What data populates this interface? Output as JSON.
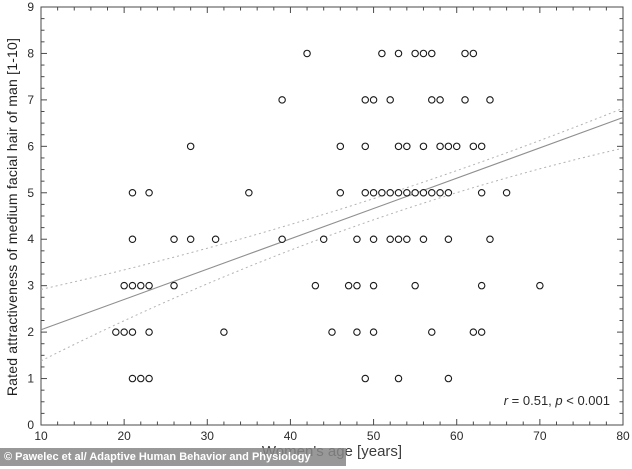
{
  "watermark": {
    "text": "© Pawelec et al/ Adaptive Human Behavior and Physiology"
  },
  "annotation_parts": {
    "r_var": "r",
    "r_rest": " = 0.51, ",
    "p_var": "p",
    "p_rest": " < 0.001"
  },
  "chart_data": {
    "type": "scatter",
    "title": "",
    "xlabel": "Women's age [years]",
    "ylabel": "Rated attractiveness of medium facial hair of man [1-10]",
    "xlim": [
      10,
      80
    ],
    "ylim": [
      0,
      9
    ],
    "x_ticks": [
      10,
      20,
      30,
      40,
      50,
      60,
      70,
      80
    ],
    "y_ticks": [
      0,
      1,
      2,
      3,
      4,
      5,
      6,
      7,
      8,
      9
    ],
    "x_minor_step": 2,
    "y_minor_step": 0.25,
    "grid": false,
    "legend": null,
    "annotation": "r = 0.51, p < 0.001",
    "marker": {
      "shape": "open-circle",
      "radius": 3.2,
      "stroke": "#1a1a1a"
    },
    "colors": {
      "regression_line": "#8f8f8f",
      "confidence_band": "#b3b3b3",
      "frame": "#4a4a4a"
    },
    "points": [
      [
        42,
        8
      ],
      [
        51,
        8
      ],
      [
        53,
        8
      ],
      [
        55,
        8
      ],
      [
        56,
        8
      ],
      [
        57,
        8
      ],
      [
        61,
        8
      ],
      [
        62,
        8
      ],
      [
        39,
        7
      ],
      [
        49,
        7
      ],
      [
        50,
        7
      ],
      [
        52,
        7
      ],
      [
        57,
        7
      ],
      [
        58,
        7
      ],
      [
        61,
        7
      ],
      [
        64,
        7
      ],
      [
        28,
        6
      ],
      [
        46,
        6
      ],
      [
        49,
        6
      ],
      [
        53,
        6
      ],
      [
        54,
        6
      ],
      [
        56,
        6
      ],
      [
        58,
        6
      ],
      [
        59,
        6
      ],
      [
        60,
        6
      ],
      [
        62,
        6
      ],
      [
        63,
        6
      ],
      [
        21,
        5
      ],
      [
        23,
        5
      ],
      [
        35,
        5
      ],
      [
        46,
        5
      ],
      [
        49,
        5
      ],
      [
        50,
        5
      ],
      [
        51,
        5
      ],
      [
        52,
        5
      ],
      [
        53,
        5
      ],
      [
        54,
        5
      ],
      [
        55,
        5
      ],
      [
        56,
        5
      ],
      [
        57,
        5
      ],
      [
        58,
        5
      ],
      [
        59,
        5
      ],
      [
        63,
        5
      ],
      [
        66,
        5
      ],
      [
        21,
        4
      ],
      [
        26,
        4
      ],
      [
        28,
        4
      ],
      [
        31,
        4
      ],
      [
        39,
        4
      ],
      [
        44,
        4
      ],
      [
        48,
        4
      ],
      [
        50,
        4
      ],
      [
        52,
        4
      ],
      [
        53,
        4
      ],
      [
        54,
        4
      ],
      [
        56,
        4
      ],
      [
        59,
        4
      ],
      [
        64,
        4
      ],
      [
        20,
        3
      ],
      [
        21,
        3
      ],
      [
        22,
        3
      ],
      [
        23,
        3
      ],
      [
        26,
        3
      ],
      [
        43,
        3
      ],
      [
        47,
        3
      ],
      [
        48,
        3
      ],
      [
        50,
        3
      ],
      [
        55,
        3
      ],
      [
        63,
        3
      ],
      [
        70,
        3
      ],
      [
        19,
        2
      ],
      [
        20,
        2
      ],
      [
        21,
        2
      ],
      [
        23,
        2
      ],
      [
        32,
        2
      ],
      [
        45,
        2
      ],
      [
        48,
        2
      ],
      [
        50,
        2
      ],
      [
        57,
        2
      ],
      [
        62,
        2
      ],
      [
        63,
        2
      ],
      [
        21,
        1
      ],
      [
        22,
        1
      ],
      [
        23,
        1
      ],
      [
        49,
        1
      ],
      [
        53,
        1
      ],
      [
        59,
        1
      ]
    ],
    "regression_line": {
      "x1": 10,
      "y1": 2.05,
      "x2": 80,
      "y2": 6.62
    },
    "confidence_bands": {
      "upper": {
        "start": [
          10,
          2.92
        ],
        "control": [
          45,
          4.31
        ],
        "end": [
          80,
          6.82
        ]
      },
      "lower": {
        "start": [
          10,
          1.38
        ],
        "control": [
          45,
          4.53
        ],
        "end": [
          80,
          5.96
        ]
      }
    }
  }
}
